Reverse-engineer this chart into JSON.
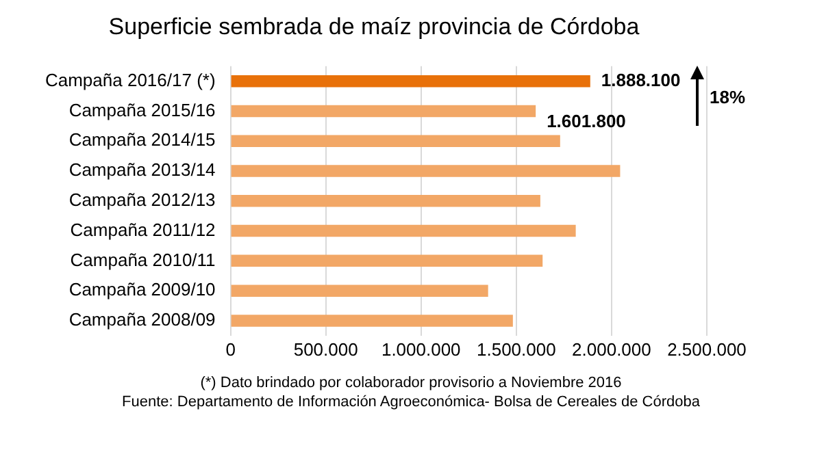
{
  "chart_data": {
    "type": "bar",
    "orientation": "horizontal",
    "title": "Superficie sembrada de maíz provincia de Córdoba",
    "categories": [
      "Campaña 2016/17 (*)",
      "Campaña 2015/16",
      "Campaña 2014/15",
      "Campaña 2013/14",
      "Campaña 2012/13",
      "Campaña 2011/12",
      "Campaña 2010/11",
      "Campaña 2009/10",
      "Campaña 2008/09"
    ],
    "values": [
      1888100,
      1601800,
      1730000,
      2045000,
      1626000,
      1812000,
      1638000,
      1352000,
      1482000
    ],
    "colors": [
      "#e8710a",
      "#f2a766",
      "#f2a766",
      "#f2a766",
      "#f2a766",
      "#f2a766",
      "#f2a766",
      "#f2a766",
      "#f2a766"
    ],
    "value_labels": [
      "1.888.100",
      "1.601.800",
      null,
      null,
      null,
      null,
      null,
      null,
      null
    ],
    "xlim": [
      0,
      2500000
    ],
    "xticks": [
      {
        "value": 0,
        "label": "0"
      },
      {
        "value": 500000,
        "label": "500.000"
      },
      {
        "value": 1000000,
        "label": "1.000.000"
      },
      {
        "value": 1500000,
        "label": "1.500.000"
      },
      {
        "value": 2000000,
        "label": "2.000.000"
      },
      {
        "value": 2500000,
        "label": "2.500.000"
      }
    ],
    "grid": "x",
    "legend": false,
    "annotations": [
      "18%",
      "(*) Dato brindado por colaborador provisorio a Noviembre 2016",
      "Fuente: Departamento de Información Agroeconómica- Bolsa de Cereales de Córdoba"
    ]
  }
}
